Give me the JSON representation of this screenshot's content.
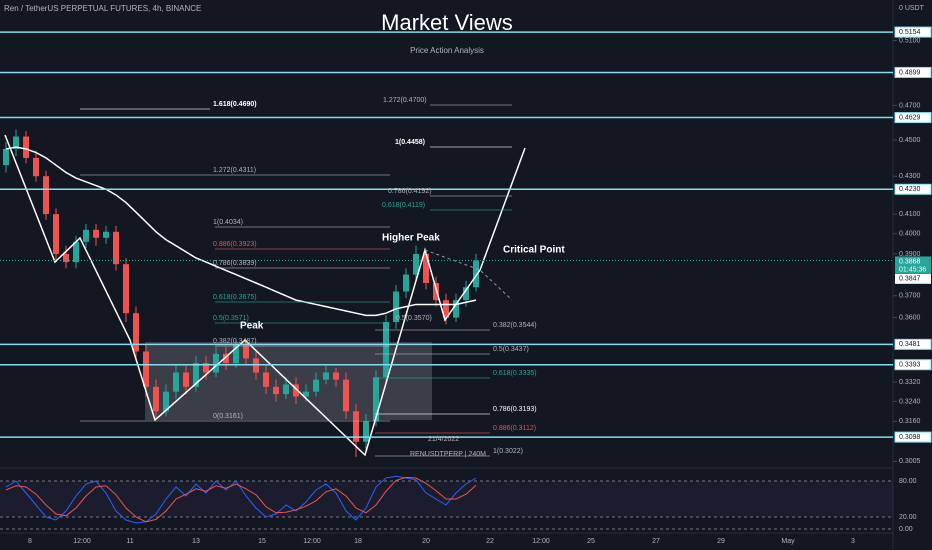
{
  "chart_data": {
    "type": "candlestick",
    "header": "Ren / TetherUS PERPETUAL FUTURES, 4h, BINANCE",
    "title": "Market Views",
    "subtitle": "Price Action Analysis",
    "axis_unit_label": "0 USDT",
    "log_scale": true,
    "ylim": [
      0.298,
      0.5366
    ],
    "yticks": [
      {
        "value": 0.51,
        "label": "0.5100"
      },
      {
        "value": 0.47,
        "label": "0.4700"
      },
      {
        "value": 0.45,
        "label": "0.4500"
      },
      {
        "value": 0.43,
        "label": "0.4300"
      },
      {
        "value": 0.41,
        "label": "0.4100"
      },
      {
        "value": 0.4,
        "label": "0.4000"
      },
      {
        "value": 0.39,
        "label": "0.3900"
      },
      {
        "value": 0.37,
        "label": "0.3700"
      },
      {
        "value": 0.36,
        "label": "0.3600"
      },
      {
        "value": 0.332,
        "label": "0.3320"
      },
      {
        "value": 0.324,
        "label": "0.3240"
      },
      {
        "value": 0.316,
        "label": "0.3160"
      },
      0.3005
    ],
    "x_labels": [
      "8",
      "12:00",
      "11",
      "13",
      "15",
      "12:00",
      "18",
      "20",
      "22",
      "12:00",
      "25",
      "27",
      "29",
      "May",
      "3"
    ],
    "up_color": "#26a69a",
    "down_color": "#ef5350",
    "level_color": "#7fdfef",
    "open": [
      0.436,
      0.445,
      0.452,
      0.44,
      0.43,
      0.41,
      0.39,
      0.386,
      0.396,
      0.402,
      0.398,
      0.401,
      0.385,
      0.362,
      0.345,
      0.33,
      0.32,
      0.328,
      0.336,
      0.33,
      0.34,
      0.336,
      0.344,
      0.34,
      0.348,
      0.342,
      0.336,
      0.33,
      0.327,
      0.331,
      0.326,
      0.328,
      0.333,
      0.336,
      0.333,
      0.32,
      0.308,
      0.316,
      0.334,
      0.358,
      0.372,
      0.38,
      0.39,
      0.376,
      0.368,
      0.36,
      0.368,
      0.374
    ],
    "high": [
      0.449,
      0.456,
      0.455,
      0.444,
      0.433,
      0.413,
      0.394,
      0.399,
      0.405,
      0.405,
      0.404,
      0.404,
      0.388,
      0.365,
      0.348,
      0.333,
      0.331,
      0.339,
      0.339,
      0.343,
      0.343,
      0.347,
      0.347,
      0.35,
      0.35,
      0.345,
      0.339,
      0.333,
      0.334,
      0.334,
      0.331,
      0.336,
      0.339,
      0.338,
      0.336,
      0.323,
      0.319,
      0.337,
      0.361,
      0.375,
      0.383,
      0.394,
      0.392,
      0.379,
      0.371,
      0.371,
      0.377,
      0.39
    ],
    "low": [
      0.432,
      0.441,
      0.437,
      0.427,
      0.407,
      0.386,
      0.383,
      0.383,
      0.393,
      0.394,
      0.395,
      0.382,
      0.358,
      0.341,
      0.326,
      0.317,
      0.318,
      0.325,
      0.327,
      0.328,
      0.333,
      0.334,
      0.337,
      0.338,
      0.339,
      0.333,
      0.327,
      0.324,
      0.325,
      0.323,
      0.324,
      0.326,
      0.331,
      0.33,
      0.317,
      0.3022,
      0.305,
      0.314,
      0.332,
      0.355,
      0.369,
      0.377,
      0.373,
      0.365,
      0.357,
      0.358,
      0.365,
      0.372
    ],
    "close": [
      0.445,
      0.452,
      0.44,
      0.43,
      0.41,
      0.39,
      0.386,
      0.396,
      0.402,
      0.398,
      0.401,
      0.385,
      0.362,
      0.345,
      0.33,
      0.32,
      0.328,
      0.336,
      0.33,
      0.34,
      0.336,
      0.344,
      0.34,
      0.348,
      0.342,
      0.336,
      0.33,
      0.327,
      0.331,
      0.326,
      0.328,
      0.333,
      0.336,
      0.333,
      0.32,
      0.308,
      0.316,
      0.334,
      0.358,
      0.372,
      0.38,
      0.39,
      0.376,
      0.368,
      0.36,
      0.368,
      0.374,
      0.3868
    ],
    "ma": {
      "color": "#ffffff",
      "values": [
        0.445,
        0.446,
        0.445,
        0.443,
        0.44,
        0.436,
        0.432,
        0.429,
        0.427,
        0.425,
        0.423,
        0.42,
        0.416,
        0.411,
        0.406,
        0.401,
        0.397,
        0.394,
        0.391,
        0.388,
        0.386,
        0.384,
        0.382,
        0.38,
        0.378,
        0.376,
        0.374,
        0.372,
        0.37,
        0.368,
        0.367,
        0.366,
        0.365,
        0.364,
        0.363,
        0.362,
        0.361,
        0.361,
        0.362,
        0.364,
        0.365,
        0.366,
        0.366,
        0.366,
        0.366,
        0.366,
        0.367,
        0.368
      ]
    },
    "levels": [
      0.5154,
      0.4899,
      0.4629,
      {
        "value": 0.423,
        "label": "0.4230"
      },
      0.3481,
      0.3393,
      0.3098
    ],
    "last_price": 0.3868,
    "countdown": "01:45:36",
    "prev_price": 0.3847,
    "annotations": [
      "1.618(0.4690)",
      "1.272(0.4311)",
      "1(0.4034)",
      "0.886(0.3923)",
      "0.786(0.3839)",
      "0.618(0.3675)",
      "0.5(0.3571)",
      "0.382(0.3487)",
      "0(0.3161)",
      "1.272(0.4700)",
      "1(0.4458)",
      "0.786(0.4192)",
      "0.618(0.4119)",
      "0.5(0.3570)",
      "0.382(0.3544)",
      "0.5(0.3437)",
      "0.618(0.3335)",
      "0.786(0.3193)",
      "0.886(0.3112)",
      "1(0.3022)",
      "Higher Peak",
      "Peak",
      "Critical Point",
      "21/4/2022",
      "RENUSDTPERP | 240M"
    ],
    "oscillator": {
      "ylim": [
        0,
        100
      ],
      "yticks": [
        {
          "value": 80,
          "label": "80.00"
        },
        {
          "value": 20,
          "label": "20.00"
        },
        {
          "value": 0,
          "label": "0.00"
        }
      ],
      "series": [
        {
          "color": "#2962ff",
          "values": [
            70,
            80,
            60,
            40,
            20,
            15,
            30,
            55,
            75,
            80,
            60,
            30,
            15,
            10,
            12,
            25,
            50,
            70,
            55,
            75,
            60,
            80,
            65,
            80,
            55,
            35,
            20,
            25,
            40,
            30,
            45,
            65,
            75,
            60,
            30,
            15,
            35,
            70,
            85,
            88,
            85,
            82,
            60,
            50,
            40,
            60,
            75,
            85
          ]
        },
        {
          "color": "#ef5350",
          "values": [
            65,
            72,
            70,
            58,
            40,
            25,
            22,
            35,
            55,
            70,
            72,
            57,
            35,
            20,
            12,
            16,
            30,
            50,
            58,
            67,
            63,
            72,
            68,
            75,
            67,
            57,
            37,
            27,
            28,
            32,
            38,
            47,
            62,
            67,
            55,
            35,
            27,
            40,
            63,
            81,
            86,
            85,
            76,
            64,
            50,
            50,
            58,
            73
          ]
        }
      ]
    }
  }
}
